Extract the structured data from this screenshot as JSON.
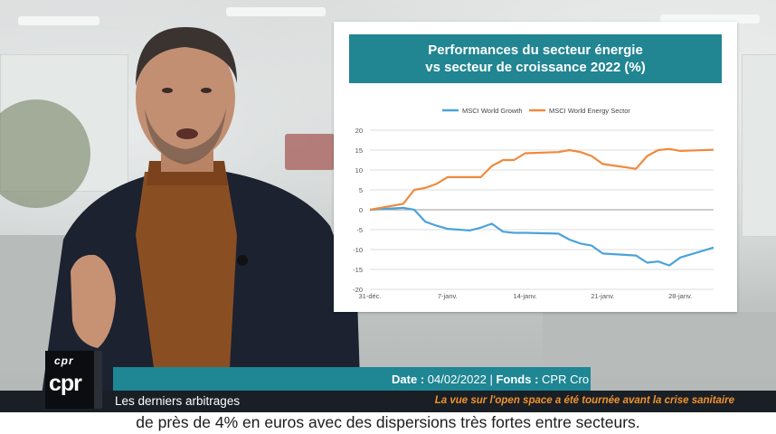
{
  "chart_card": {
    "title_line1": "Performances du secteur énergie",
    "title_line2": "vs secteur de croissance 2022 (%)",
    "legend": {
      "growth_label": "MSCI World Growth",
      "energy_label": "MSCI World Energy Sector"
    }
  },
  "chart_data": {
    "type": "line",
    "title": "Performances du secteur énergie vs secteur de croissance 2022 (%)",
    "x_tick_labels": [
      "31-déc.",
      "7-janv.",
      "14-janv.",
      "21-janv.",
      "28-janv."
    ],
    "y_ticks": [
      20,
      15,
      10,
      5,
      0,
      -5,
      -10,
      -15,
      -20
    ],
    "ylim": [
      -20,
      20
    ],
    "xlim": [
      0,
      31
    ],
    "grid": true,
    "legend_position": "top-center",
    "x_day_offsets": [
      0,
      3,
      4,
      5,
      6,
      7,
      9,
      10,
      11,
      12,
      13,
      14,
      17,
      18,
      19,
      20,
      21,
      24,
      25,
      26,
      27,
      28,
      31
    ],
    "series": [
      {
        "name": "MSCI World Growth",
        "color": "#4aa3db",
        "values": [
          0,
          0.5,
          0,
          -3,
          -4,
          -4.8,
          -5.2,
          -4.5,
          -3.5,
          -5.5,
          -5.8,
          -5.8,
          -6,
          -7.5,
          -8.5,
          -9,
          -11,
          -11.5,
          -13.3,
          -13,
          -14,
          -12,
          -9.5
        ]
      },
      {
        "name": "MSCI World Energy Sector",
        "color": "#f08a3c",
        "values": [
          0,
          1.5,
          5,
          5.5,
          6.5,
          8.2,
          8.2,
          8.2,
          11,
          12.5,
          12.5,
          14.2,
          14.5,
          15,
          14.5,
          13.5,
          11.5,
          10.3,
          13.5,
          15,
          15.3,
          14.8,
          15.1
        ]
      }
    ]
  },
  "lower_third": {
    "date_label": "Date",
    "date_value": "04/02/2022",
    "fonds_label": "Fonds",
    "fonds_value": "CPR Cro",
    "topic": "Les derniers arbitrages",
    "disclaimer": "La vue sur l'open space a été tournée avant la crise sanitaire",
    "subtitle": "de près de 4% en euros avec des dispersions très fortes entre secteurs."
  },
  "logo": {
    "small_text": "cpr",
    "big_text": "cpr"
  },
  "colors": {
    "accent_teal": "#218592",
    "dark_band": "#1a1f26",
    "disclaimer_orange": "#f0932c"
  }
}
